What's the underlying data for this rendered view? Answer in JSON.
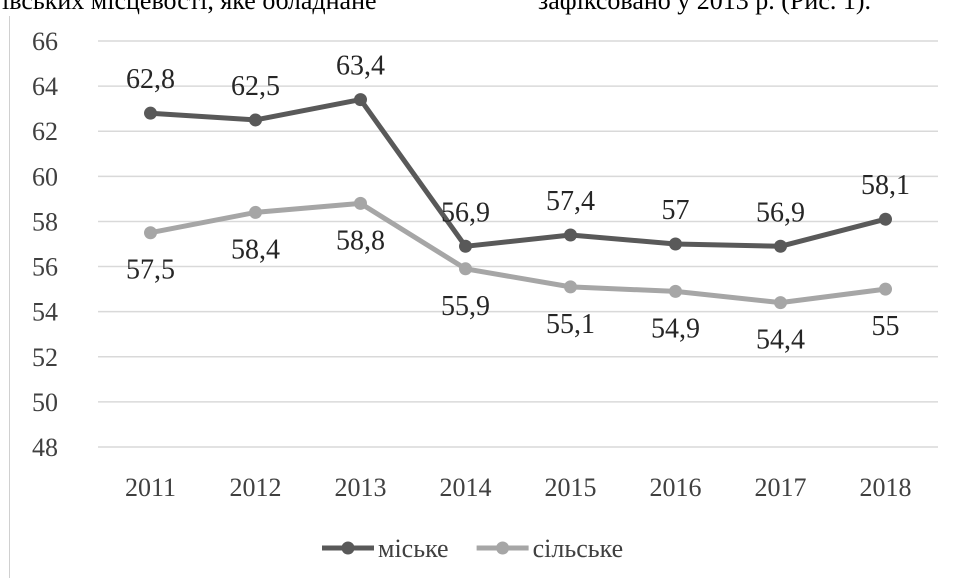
{
  "page_header_fragment": {
    "left_text": "івських  місцевості,  яке  обладнане",
    "right_text": "зафіксовано у 2013 р. (Рис. 1)."
  },
  "chart_data": {
    "type": "line",
    "categories": [
      "2011",
      "2012",
      "2013",
      "2014",
      "2015",
      "2016",
      "2017",
      "2018"
    ],
    "series": [
      {
        "name": "міське",
        "color": "#595959",
        "values": [
          62.8,
          62.5,
          63.4,
          56.9,
          57.4,
          57,
          56.9,
          58.1
        ],
        "labels": [
          "62,8",
          "62,5",
          "63,4",
          "56,9",
          "57,4",
          "57",
          "56,9",
          "58,1"
        ],
        "label_position": "above"
      },
      {
        "name": "сільське",
        "color": "#a6a6a6",
        "values": [
          57.5,
          58.4,
          58.8,
          55.9,
          55.1,
          54.9,
          54.4,
          55
        ],
        "labels": [
          "57,5",
          "58,4",
          "58,8",
          "55,9",
          "55,1",
          "54,9",
          "54,4",
          "55"
        ],
        "label_position": "below"
      }
    ],
    "ylim": [
      48,
      66
    ],
    "yticks": [
      "48",
      "50",
      "52",
      "54",
      "56",
      "58",
      "60",
      "62",
      "64",
      "66"
    ],
    "xlabel": "",
    "ylabel": "",
    "grid": "horizontal",
    "legend_position": "bottom"
  }
}
